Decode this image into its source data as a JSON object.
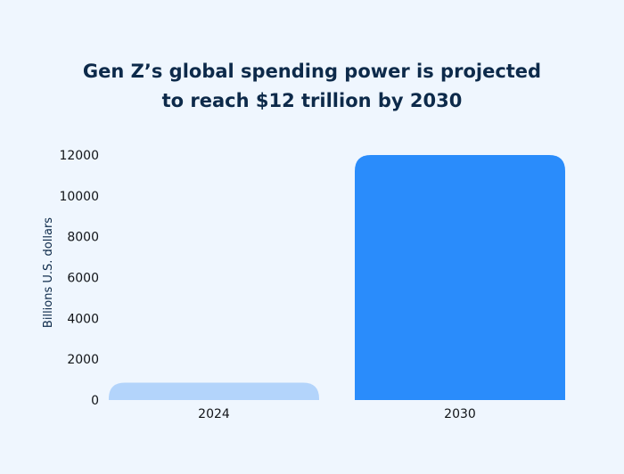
{
  "chart_data": {
    "type": "bar",
    "title": "Gen Z’s global spending power is projected to reach $12 trillion by 2030",
    "title_lines": [
      "Gen Z’s global spending power is projected",
      "to reach $12 trillion by 2030"
    ],
    "categories": [
      "2024",
      "2030"
    ],
    "values": [
      850,
      12000
    ],
    "bar_colors": [
      "#b3d4fb",
      "#2a8cfb"
    ],
    "xlabel": "",
    "ylabel": "Billions U.S. dollars",
    "ylim": [
      0,
      12000
    ],
    "yticks": [
      "0",
      "2000",
      "4000",
      "6000",
      "8000",
      "10000",
      "12000"
    ],
    "grid": false,
    "legend": "none"
  }
}
